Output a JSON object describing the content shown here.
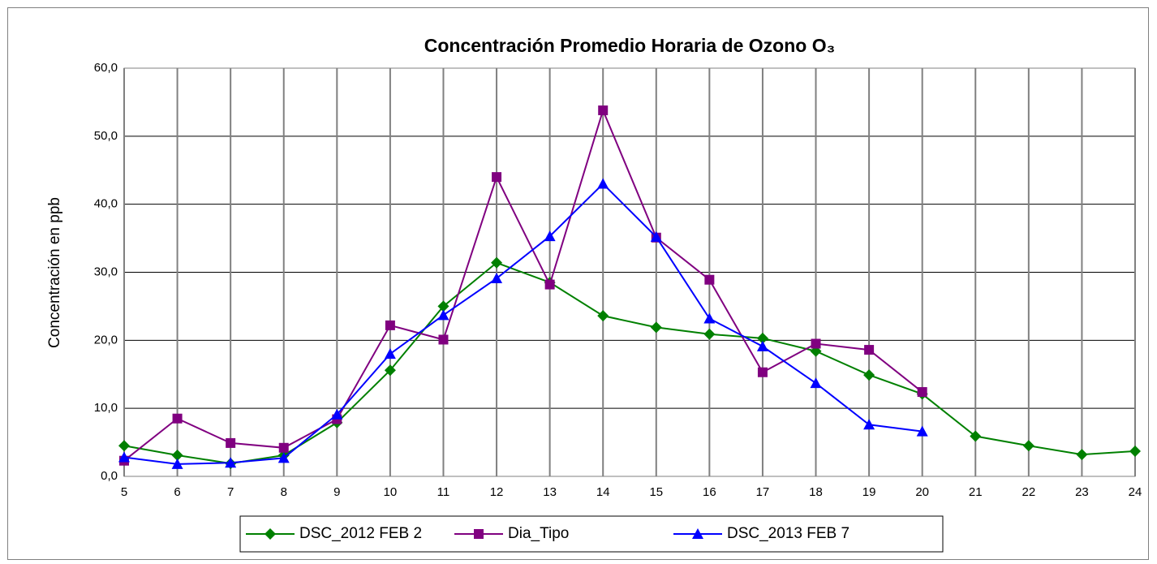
{
  "chart_data": {
    "type": "line",
    "title": "Concentración Promedio Horaria de Ozono O₃",
    "y_label": "Concentración en ppb",
    "x": [
      5,
      6,
      7,
      8,
      9,
      10,
      11,
      12,
      13,
      14,
      15,
      16,
      17,
      18,
      19,
      20,
      21,
      22,
      23,
      24
    ],
    "xlim": [
      5,
      24
    ],
    "xticks": [
      5,
      6,
      7,
      8,
      9,
      10,
      11,
      12,
      13,
      14,
      15,
      16,
      17,
      18,
      19,
      20,
      21,
      22,
      23,
      24
    ],
    "ylim": [
      0,
      60
    ],
    "yticks": [
      {
        "value": 0,
        "label": "0,0"
      },
      {
        "value": 10,
        "label": "10,0"
      },
      {
        "value": 20,
        "label": "20,0"
      },
      {
        "value": 30,
        "label": "30,0"
      },
      {
        "value": 40,
        "label": "40,0"
      },
      {
        "value": 50,
        "label": "50,0"
      },
      {
        "value": 60,
        "label": "60,0"
      }
    ],
    "grid": true,
    "legend": "bottom",
    "series": [
      {
        "name": "DSC_2012 FEB 2",
        "color": "#008000",
        "marker": "diamond",
        "values": [
          4.5,
          3.1,
          1.9,
          3.1,
          7.9,
          15.6,
          25.0,
          31.4,
          28.5,
          23.6,
          21.9,
          20.9,
          20.3,
          18.4,
          14.9,
          12.1,
          5.9,
          4.5,
          3.2,
          3.7
        ]
      },
      {
        "name": "Dia_Tipo",
        "color": "#800080",
        "marker": "square",
        "values": [
          2.3,
          8.5,
          4.9,
          4.2,
          8.4,
          22.2,
          20.1,
          44.0,
          28.2,
          53.8,
          35.1,
          28.9,
          15.3,
          19.5,
          18.6,
          12.4,
          null,
          null,
          null,
          null
        ]
      },
      {
        "name": "DSC_2013 FEB 7",
        "color": "#0000ff",
        "marker": "triangle",
        "values": [
          2.8,
          1.8,
          2.0,
          2.7,
          9.1,
          18.0,
          23.7,
          29.1,
          35.3,
          43.0,
          35.2,
          23.2,
          19.1,
          13.7,
          7.6,
          6.6,
          null,
          null,
          null,
          null
        ]
      }
    ]
  }
}
